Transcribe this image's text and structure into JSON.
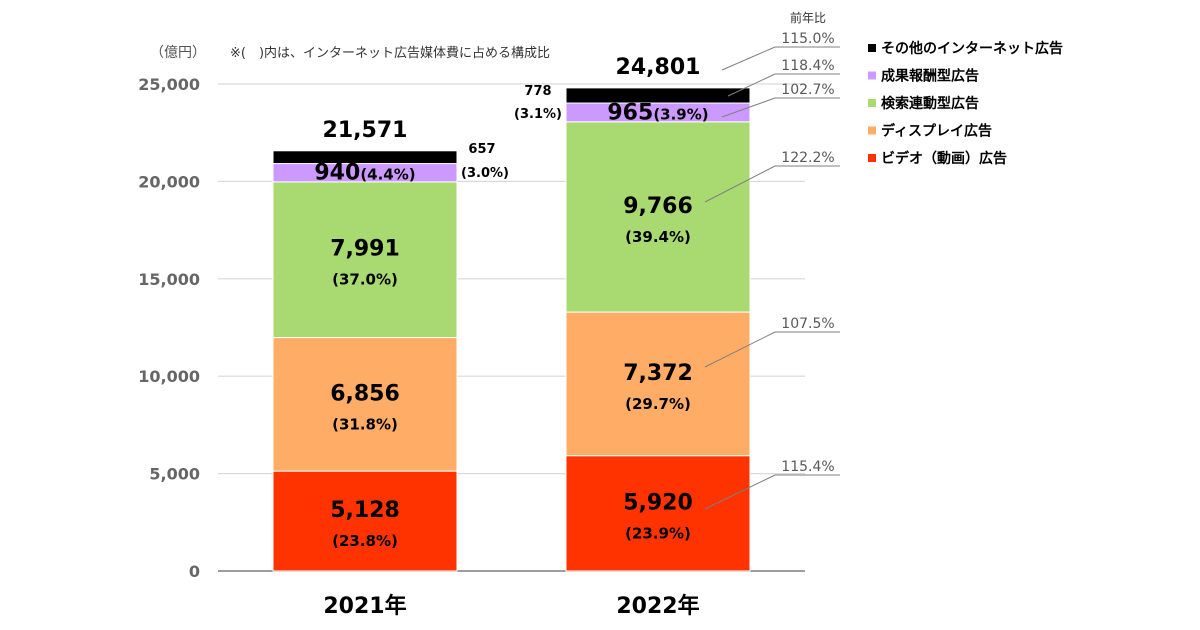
{
  "chart_data": {
    "type": "bar",
    "stacked": true,
    "unit_label": "（億円）",
    "note": "※(　)内は、インターネット広告媒体費に占める構成比",
    "yoy_header": "前年比",
    "ylim": [
      0,
      25000
    ],
    "yticks": [
      "0",
      "5,000",
      "10,000",
      "15,000",
      "20,000",
      "25,000"
    ],
    "ytick_values": [
      0,
      5000,
      10000,
      15000,
      20000,
      25000
    ],
    "categories": [
      "2021年",
      "2022年"
    ],
    "totals": [
      21571,
      24801
    ],
    "totals_text": [
      "21,571",
      "24,801"
    ],
    "grid": true,
    "legend_position": "right",
    "series": [
      {
        "name": "ビデオ（動画）広告",
        "color": "#ff3300",
        "values": [
          5128,
          5920
        ],
        "labels": [
          "5,128",
          "5,920"
        ],
        "shares": [
          "(23.8%)",
          "(23.9%)"
        ],
        "yoy": "115.4%"
      },
      {
        "name": "ディスプレイ広告",
        "color": "#ffad66",
        "values": [
          6856,
          7372
        ],
        "labels": [
          "6,856",
          "7,372"
        ],
        "shares": [
          "(31.8%)",
          "(29.7%)"
        ],
        "yoy": "107.5%"
      },
      {
        "name": "検索連動型広告",
        "color": "#a9d971",
        "values": [
          7991,
          9766
        ],
        "labels": [
          "7,991",
          "9,766"
        ],
        "shares": [
          "(37.0%)",
          "(39.4%)"
        ],
        "yoy": "122.2%"
      },
      {
        "name": "成果報酬型広告",
        "color": "#cc99ff",
        "values": [
          940,
          965
        ],
        "labels": [
          "940",
          "965"
        ],
        "shares": [
          "(4.4%)",
          "(3.9%)"
        ],
        "yoy": "102.7%"
      },
      {
        "name": "その他のインターネット広告",
        "color": "#000000",
        "values": [
          657,
          778
        ],
        "labels": [
          "657",
          "778"
        ],
        "shares": [
          "(3.0%)",
          "(3.1%)"
        ],
        "yoy": "118.4%"
      }
    ],
    "total_yoy": "115.0%",
    "legend_order": [
      "その他のインターネット広告",
      "成果報酬型広告",
      "検索連動型広告",
      "ディスプレイ広告",
      "ビデオ（動画）広告"
    ]
  }
}
